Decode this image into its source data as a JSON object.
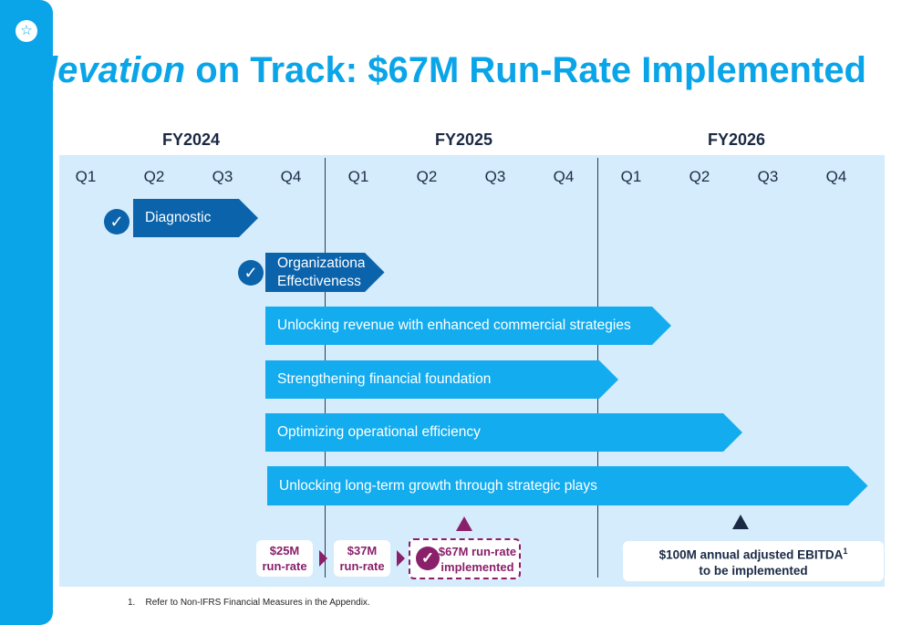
{
  "slide": {
    "title_italic": "Elevation",
    "title_rest": " on Track: $67M Run-Rate Implemented",
    "logo_icon": "star-icon",
    "accent_color": "#0aa5e8",
    "purple": "#8a1f6a",
    "navy": "#1a2a44"
  },
  "timeline": {
    "fiscal_years": [
      "FY2024",
      "FY2025",
      "FY2026"
    ],
    "quarters": [
      "Q1",
      "Q2",
      "Q3",
      "Q4",
      "Q1",
      "Q2",
      "Q3",
      "Q4",
      "Q1",
      "Q2",
      "Q3",
      "Q4"
    ],
    "workstreams": [
      {
        "label": "Diagnostic",
        "completed": true
      },
      {
        "label_line1": "Organizational",
        "label_line2": "Effectiveness",
        "completed": true
      },
      {
        "label": "Unlocking revenue with enhanced commercial strategies"
      },
      {
        "label": "Strengthening financial foundation"
      },
      {
        "label": "Optimizing operational efficiency"
      },
      {
        "label": "Unlocking long-term growth through strategic plays"
      }
    ]
  },
  "milestones": {
    "rr25": {
      "line1": "$25M",
      "line2": "run-rate"
    },
    "rr37": {
      "line1": "$37M",
      "line2": "run-rate"
    },
    "rr67": {
      "line1": "$67M run-rate",
      "line2": "implemented",
      "completed": true
    },
    "target": {
      "line1": "$100M annual adjusted EBITDA",
      "sup": "1",
      "line2": "to be implemented"
    }
  },
  "footnote": {
    "number": "1.",
    "text": "Refer to Non-IFRS Financial Measures in the Appendix."
  }
}
